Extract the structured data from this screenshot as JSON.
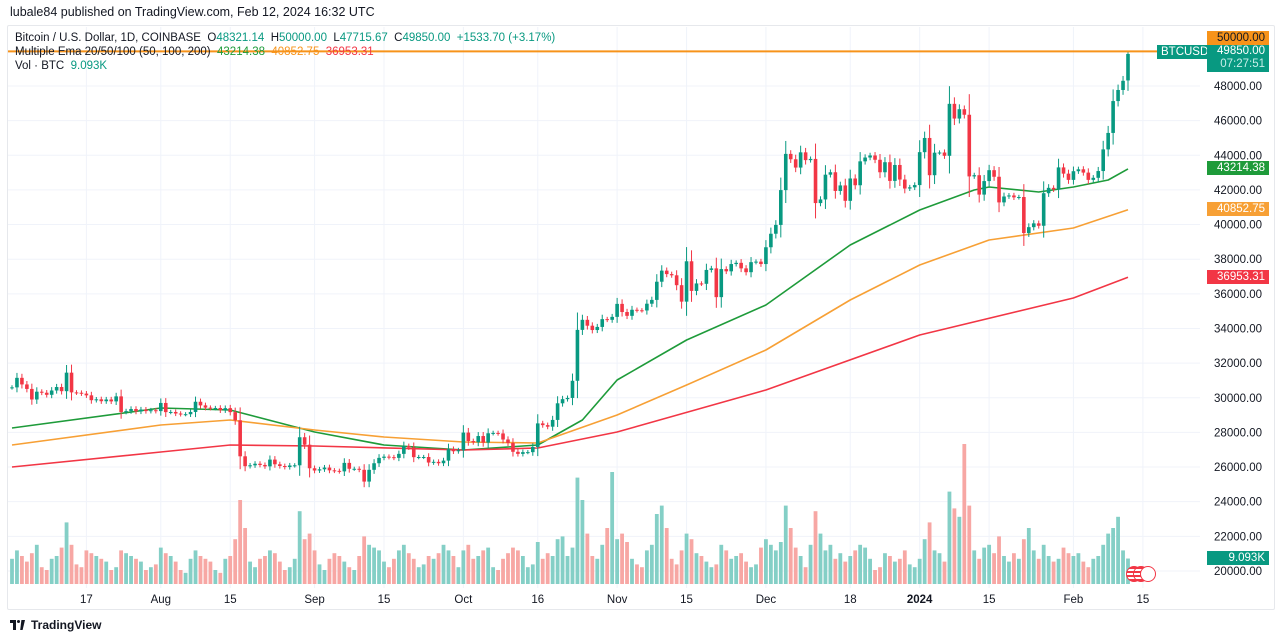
{
  "publisher_line": "lubale84 published on TradingView.com, Feb 12, 2024 16:32 UTC",
  "legend": {
    "symbol": "Bitcoin / U.S. Dollar, 1D, COINBASE",
    "o_label": "O",
    "o": "48321.14",
    "h_label": "H",
    "h": "50000.00",
    "l_label": "L",
    "l": "47715.67",
    "c_label": "C",
    "c": "49850.00",
    "change": "+1533.70 (+3.17%)",
    "ema_name": "Multiple Ema 20/50/100 (50, 100, 200)",
    "ema50": "43214.38",
    "ema100": "40852.75",
    "ema200": "36953.31",
    "vol_name": "Vol · BTC",
    "vol": "9.093K"
  },
  "price_tags": {
    "alert_level": "50000.00",
    "symbol_tag": "BTCUSD",
    "last_price": "49850.00",
    "countdown": "07:27:51",
    "ema50": "43214.38",
    "ema100": "40852.75",
    "ema200": "36953.31",
    "volume": "9.093K"
  },
  "footer": {
    "brand": "TradingView"
  },
  "colors": {
    "up": "#089981",
    "down": "#f23645",
    "vol_up": "#84cfc6",
    "vol_down": "#f7a7a4",
    "ema50": "#1e9b3a",
    "ema100": "#f7a035",
    "ema200": "#f23645",
    "alert_line": "#f7931a"
  },
  "icons": {
    "events": "us-flag-economic-event-icon",
    "logo": "tradingview-logo-icon"
  },
  "chart_data": {
    "type": "candlestick",
    "symbol": "BTCUSD",
    "interval": "1D",
    "ylim": [
      19000,
      51000
    ],
    "y_ticks": [
      20000,
      22000,
      24000,
      26000,
      28000,
      30000,
      32000,
      34000,
      36000,
      38000,
      40000,
      42000,
      44000,
      46000,
      48000
    ],
    "x_ticks": [
      {
        "label": "17",
        "date": "2023-07-17"
      },
      {
        "label": "Aug",
        "date": "2023-08-01"
      },
      {
        "label": "15",
        "date": "2023-08-15"
      },
      {
        "label": "Sep",
        "date": "2023-09-01"
      },
      {
        "label": "15",
        "date": "2023-09-15"
      },
      {
        "label": "Oct",
        "date": "2023-10-01"
      },
      {
        "label": "16",
        "date": "2023-10-16"
      },
      {
        "label": "Nov",
        "date": "2023-11-01"
      },
      {
        "label": "15",
        "date": "2023-11-15"
      },
      {
        "label": "Dec",
        "date": "2023-12-01"
      },
      {
        "label": "18",
        "date": "2023-12-18"
      },
      {
        "label": "2024",
        "date": "2024-01-01"
      },
      {
        "label": "15",
        "date": "2024-01-15"
      },
      {
        "label": "Feb",
        "date": "2024-02-01"
      },
      {
        "label": "15",
        "date": "2024-02-15"
      }
    ],
    "first_date": "2023-07-02",
    "first_open": 30590,
    "closes": [
      30600,
      31150,
      30770,
      30510,
      29900,
      30350,
      30290,
      30170,
      30420,
      30620,
      30380,
      31450,
      30310,
      30290,
      30240,
      30140,
      29860,
      29910,
      29800,
      29900,
      29790,
      30080,
      29180,
      29230,
      29350,
      29210,
      29320,
      29230,
      29280,
      29230,
      29700,
      29170,
      29180,
      29090,
      29050,
      29050,
      29180,
      29770,
      29560,
      29430,
      29400,
      29410,
      29280,
      29400,
      29170,
      28700,
      26620,
      26050,
      26100,
      26190,
      26120,
      26040,
      26430,
      26160,
      26060,
      26000,
      26090,
      26100,
      27720,
      27290,
      25930,
      25800,
      25870,
      25970,
      25810,
      25780,
      25750,
      26240,
      25900,
      25900,
      25840,
      25160,
      25840,
      26220,
      26530,
      26600,
      26570,
      26530,
      26760,
      27210,
      27130,
      26570,
      26580,
      26580,
      26260,
      26300,
      26220,
      26370,
      27030,
      26910,
      26970,
      27990,
      27500,
      27430,
      27790,
      27410,
      27950,
      27970,
      27940,
      27590,
      27390,
      26880,
      26760,
      26860,
      26860,
      27160,
      28520,
      28420,
      28330,
      28720,
      29680,
      29920,
      29990,
      30980,
      33920,
      34500,
      34160,
      33910,
      34090,
      34540,
      34500,
      34670,
      35420,
      34950,
      34730,
      35080,
      35050,
      35040,
      35430,
      35650,
      36700,
      37340,
      37140,
      37070,
      36500,
      35550,
      37880,
      36170,
      36600,
      36580,
      37380,
      37470,
      35810,
      37430,
      37300,
      37720,
      37790,
      37470,
      37250,
      37830,
      37860,
      37720,
      38690,
      39470,
      39980,
      41990,
      44080,
      43770,
      43290,
      44170,
      43720,
      43790,
      41240,
      41450,
      42880,
      43020,
      41940,
      42260,
      41370,
      42660,
      42270,
      43650,
      43870,
      43990,
      43740,
      43020,
      43600,
      42520,
      43440,
      42600,
      42080,
      42150,
      42280,
      44180,
      45000,
      42850,
      44150,
      44160,
      43970,
      46970,
      46120,
      46660,
      46340,
      42780,
      42850,
      41730,
      42510,
      43140,
      42760,
      41280,
      41620,
      41680,
      41570,
      41590,
      39510,
      39850,
      40070,
      39930,
      41810,
      42120,
      42030,
      43300,
      42940,
      42580,
      43080,
      43190,
      43000,
      42580,
      42700,
      43090,
      44340,
      45290,
      47130,
      47770,
      48300,
      49850
    ],
    "last_candle": {
      "open": 48321.14,
      "high": 50000.0,
      "low": 47715.67,
      "close": 49850.0
    },
    "volume_unit": "K BTC",
    "volumes": [
      9,
      12,
      10,
      8,
      11,
      14,
      6,
      5,
      9,
      10,
      13,
      22,
      14,
      7,
      6,
      12,
      11,
      10,
      9,
      8,
      5,
      6,
      12,
      11,
      10,
      9,
      8,
      5,
      6,
      7,
      13,
      11,
      10,
      8,
      5,
      4,
      9,
      12,
      10,
      9,
      8,
      5,
      4,
      9,
      10,
      16,
      30,
      20,
      8,
      6,
      9,
      10,
      12,
      11,
      8,
      5,
      6,
      9,
      26,
      16,
      18,
      12,
      7,
      5,
      9,
      11,
      10,
      8,
      6,
      5,
      10,
      17,
      14,
      13,
      12,
      8,
      6,
      9,
      12,
      14,
      11,
      9,
      6,
      7,
      10,
      9,
      11,
      14,
      12,
      10,
      6,
      12,
      14,
      9,
      10,
      12,
      13,
      6,
      5,
      9,
      11,
      13,
      12,
      10,
      6,
      7,
      15,
      9,
      11,
      10,
      16,
      17,
      10,
      13,
      38,
      30,
      18,
      10,
      9,
      14,
      20,
      40,
      16,
      18,
      15,
      9,
      7,
      6,
      12,
      14,
      25,
      28,
      20,
      9,
      7,
      12,
      18,
      16,
      11,
      10,
      8,
      6,
      7,
      14,
      12,
      9,
      10,
      11,
      8,
      6,
      7,
      13,
      16,
      14,
      12,
      15,
      28,
      20,
      13,
      10,
      6,
      14,
      26,
      18,
      12,
      14,
      9,
      11,
      8,
      10,
      12,
      14,
      13,
      9,
      5,
      6,
      11,
      10,
      8,
      9,
      12,
      7,
      6,
      9,
      16,
      22,
      12,
      11,
      8,
      33,
      27,
      24,
      50,
      28,
      12,
      9,
      13,
      14,
      11,
      17,
      10,
      8,
      11,
      9,
      16,
      20,
      12,
      9,
      14,
      10,
      8,
      9,
      13,
      11,
      10,
      11,
      8,
      6,
      9,
      10,
      14,
      18,
      20,
      24,
      12,
      9.093
    ],
    "ema_series": [
      {
        "name": "EMA 50",
        "value": "43214.38",
        "points": [
          [
            "2023-07-02",
            28254
          ],
          [
            "2023-08-01",
            29410
          ],
          [
            "2023-08-15",
            29294
          ],
          [
            "2023-09-01",
            28023
          ],
          [
            "2023-09-15",
            27272
          ],
          [
            "2023-10-01",
            26984
          ],
          [
            "2023-10-16",
            27272
          ],
          [
            "2023-10-25",
            28716
          ],
          [
            "2023-11-01",
            31026
          ],
          [
            "2023-11-15",
            33335
          ],
          [
            "2023-12-01",
            35355
          ],
          [
            "2023-12-18",
            38820
          ],
          [
            "2024-01-01",
            40841
          ],
          [
            "2024-01-12",
            41995
          ],
          [
            "2024-01-15",
            42169
          ],
          [
            "2024-01-25",
            41880
          ],
          [
            "2024-02-01",
            42169
          ],
          [
            "2024-02-08",
            42573
          ],
          [
            "2024-02-12",
            43214.38
          ]
        ]
      },
      {
        "name": "EMA 100",
        "value": "40852.75",
        "points": [
          [
            "2023-07-02",
            27272
          ],
          [
            "2023-08-01",
            28427
          ],
          [
            "2023-08-15",
            28716
          ],
          [
            "2023-09-01",
            28138
          ],
          [
            "2023-09-15",
            27734
          ],
          [
            "2023-10-01",
            27445
          ],
          [
            "2023-10-16",
            27387
          ],
          [
            "2023-11-01",
            29005
          ],
          [
            "2023-11-15",
            30737
          ],
          [
            "2023-12-01",
            32758
          ],
          [
            "2023-12-18",
            35645
          ],
          [
            "2024-01-01",
            37665
          ],
          [
            "2024-01-15",
            39111
          ],
          [
            "2024-02-01",
            39800
          ],
          [
            "2024-02-12",
            40852.75
          ]
        ]
      },
      {
        "name": "EMA 200",
        "value": "36953.31",
        "points": [
          [
            "2023-07-02",
            26002
          ],
          [
            "2023-08-01",
            26868
          ],
          [
            "2023-08-15",
            27272
          ],
          [
            "2023-09-01",
            27214
          ],
          [
            "2023-10-01",
            26984
          ],
          [
            "2023-10-16",
            27100
          ],
          [
            "2023-11-01",
            28023
          ],
          [
            "2023-12-01",
            30448
          ],
          [
            "2024-01-01",
            33624
          ],
          [
            "2024-02-01",
            35760
          ],
          [
            "2024-02-12",
            36953.31
          ]
        ]
      }
    ],
    "horizontal_line": 50000,
    "grid": true
  }
}
